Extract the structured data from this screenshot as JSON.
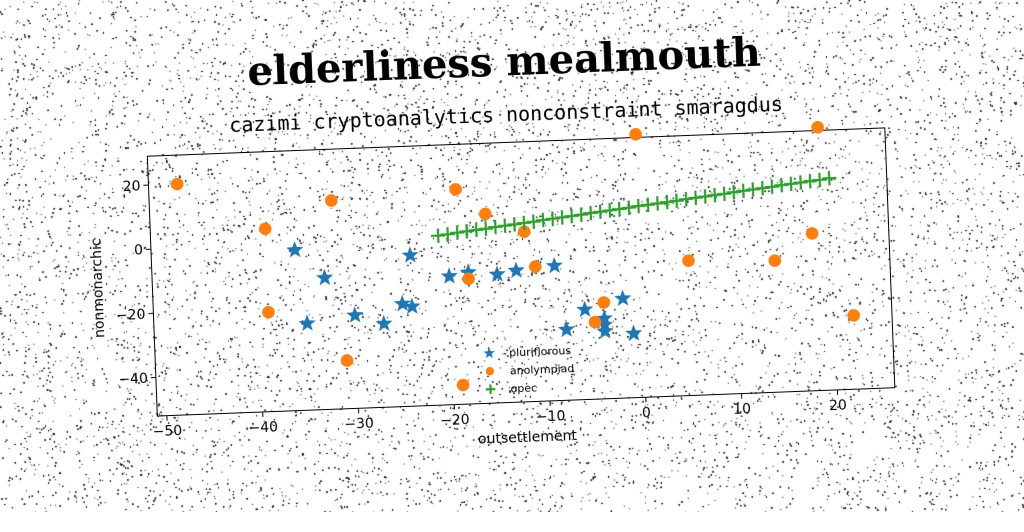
{
  "chart_data": {
    "type": "scatter",
    "title": "elderliness mealmouth",
    "subtitle": "cazimi cryptoanalytics nonconstraint smaragdus",
    "xlabel": "outsettlement",
    "ylabel": "nonmonarchic",
    "xlim": [
      -51,
      26
    ],
    "ylim": [
      -52,
      29
    ],
    "xticks": [
      -50,
      -40,
      -30,
      -20,
      -10,
      0,
      10,
      20
    ],
    "yticks": [
      -40,
      -20,
      0,
      20
    ],
    "legend": "lower-center",
    "series": [
      {
        "name": "pluriflorous",
        "marker": "star",
        "color": "#1f77b4",
        "points": [
          [
            -36,
            -2
          ],
          [
            -33,
            -11
          ],
          [
            -35,
            -25
          ],
          [
            -30,
            -23
          ],
          [
            -27,
            -26
          ],
          [
            -25,
            -20
          ],
          [
            -24,
            -21
          ],
          [
            -24,
            -5
          ],
          [
            -20,
            -12
          ],
          [
            -18,
            -11
          ],
          [
            -15,
            -12
          ],
          [
            -13,
            -11
          ],
          [
            -9,
            -10
          ],
          [
            -8,
            -30
          ],
          [
            -6,
            -24
          ],
          [
            -4,
            -29
          ],
          [
            -4,
            -27
          ],
          [
            -4,
            -31
          ],
          [
            -2,
            -21
          ],
          [
            -1,
            -32
          ]
        ]
      },
      {
        "name": "anolympiad",
        "marker": "circle",
        "color": "#ff7f0e",
        "points": [
          [
            -48,
            20
          ],
          [
            -39,
            5
          ],
          [
            -39,
            -21
          ],
          [
            -32,
            13
          ],
          [
            -31,
            -37
          ],
          [
            -19,
            15
          ],
          [
            -18,
            -13
          ],
          [
            -16,
            7
          ],
          [
            -19,
            -46
          ],
          [
            -12,
            1
          ],
          [
            -11,
            -10
          ],
          [
            -5,
            -28
          ],
          [
            -4,
            -22
          ],
          [
            0,
            30
          ],
          [
            5,
            -10
          ],
          [
            14,
            -11
          ],
          [
            18,
            -3
          ],
          [
            19,
            30
          ],
          [
            22,
            -29
          ]
        ]
      },
      {
        "name": "opec",
        "marker": "plus",
        "color": "#2ca02c",
        "points": [
          [
            -21,
            0.8
          ],
          [
            -20,
            1.1
          ],
          [
            -19,
            1.5
          ],
          [
            -18,
            1.8
          ],
          [
            -17,
            2.1
          ],
          [
            -16,
            2.4
          ],
          [
            -15,
            2.8
          ],
          [
            -14,
            3.1
          ],
          [
            -13,
            3.4
          ],
          [
            -12,
            3.7
          ],
          [
            -11,
            4.0
          ],
          [
            -10,
            4.4
          ],
          [
            -9,
            4.7
          ],
          [
            -8,
            5.0
          ],
          [
            -7,
            5.3
          ],
          [
            -6,
            5.6
          ],
          [
            -5,
            6.0
          ],
          [
            -4,
            6.3
          ],
          [
            -3,
            6.6
          ],
          [
            -2,
            6.9
          ],
          [
            -1,
            7.2
          ],
          [
            0,
            7.6
          ],
          [
            1,
            7.9
          ],
          [
            2,
            8.2
          ],
          [
            3,
            8.5
          ],
          [
            4,
            8.8
          ],
          [
            5,
            9.2
          ],
          [
            6,
            9.5
          ],
          [
            7,
            9.8
          ],
          [
            8,
            10.1
          ],
          [
            9,
            10.4
          ],
          [
            10,
            10.8
          ],
          [
            11,
            11.1
          ],
          [
            12,
            11.4
          ],
          [
            13,
            11.7
          ],
          [
            14,
            12.0
          ],
          [
            15,
            12.4
          ],
          [
            16,
            12.7
          ],
          [
            17,
            13.0
          ],
          [
            18,
            13.3
          ],
          [
            19,
            13.6
          ],
          [
            20,
            14.0
          ]
        ]
      }
    ]
  }
}
